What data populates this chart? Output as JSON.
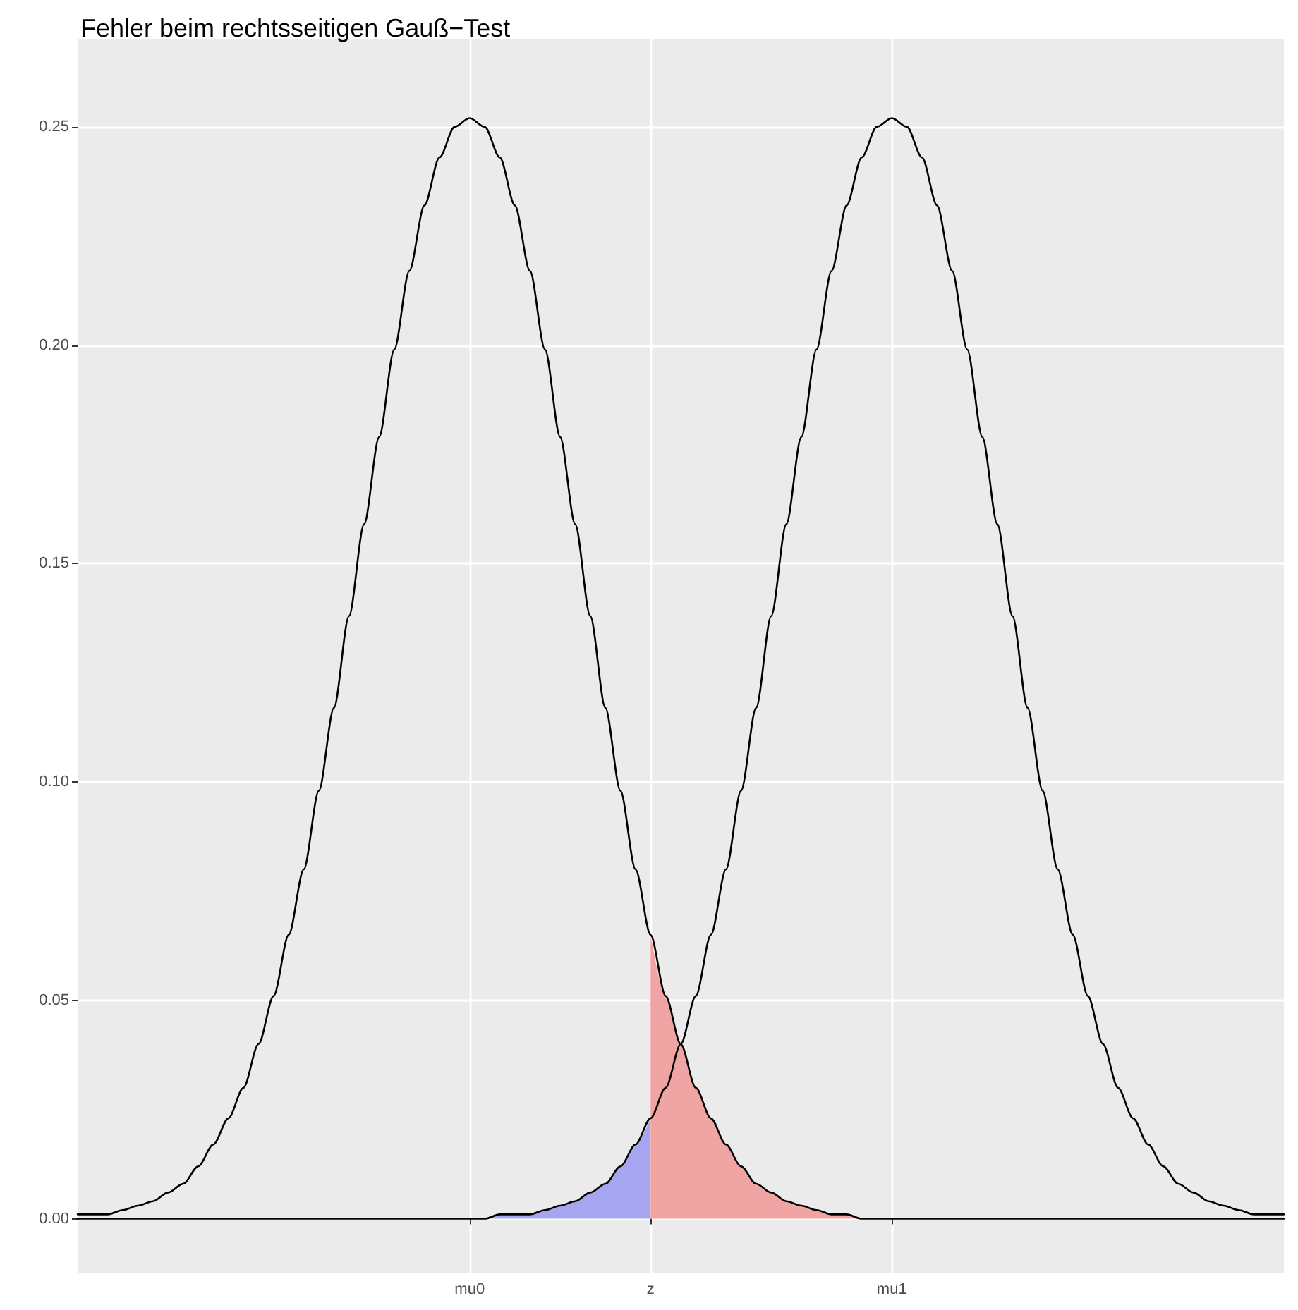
{
  "chart_data": {
    "type": "line",
    "title": "Fehler beim rechtsseitigen Gauß−Test",
    "categories": [
      null,
      null,
      null,
      null,
      null,
      null,
      null,
      null,
      null,
      null,
      null,
      null,
      null,
      null,
      null,
      null,
      null,
      null,
      null,
      null,
      null,
      null,
      null,
      null,
      null,
      null,
      "mu0",
      null,
      null,
      null,
      null,
      null,
      null,
      null,
      null,
      null,
      null,
      null,
      "z",
      null,
      null,
      null,
      null,
      null,
      null,
      null,
      null,
      null,
      null,
      null,
      null,
      null,
      null,
      null,
      "mu1",
      null,
      null,
      null,
      null,
      null,
      null,
      null,
      null,
      null,
      null,
      null,
      null,
      null,
      null,
      null,
      null,
      null,
      null,
      null,
      null,
      null,
      null,
      null,
      null,
      null,
      null
    ],
    "series": [
      {
        "type": "area",
        "color": "#a5a6ef",
        "values": [
          0,
          0,
          0,
          0,
          0,
          0,
          0,
          0,
          0,
          0,
          0,
          0,
          0,
          0,
          0,
          0,
          0,
          0,
          0,
          0,
          0,
          0,
          0,
          0,
          0,
          0,
          0,
          0,
          0.001,
          0.001,
          0.001,
          0.002,
          0.003,
          0.004,
          0.006,
          0.008,
          0.012,
          0.017,
          0.023,
          null,
          null,
          null,
          null,
          null,
          null,
          null,
          null,
          null,
          null,
          null,
          null,
          null,
          null,
          null,
          null,
          null,
          null,
          null,
          null,
          null,
          null,
          null,
          null,
          null,
          null,
          null,
          null,
          null,
          null,
          null,
          null,
          null,
          null,
          null,
          null,
          null,
          null,
          null,
          null,
          null,
          null
        ]
      },
      {
        "type": "area",
        "color": "#f0a5a4",
        "values": [
          null,
          null,
          null,
          null,
          null,
          null,
          null,
          null,
          null,
          null,
          null,
          null,
          null,
          null,
          null,
          null,
          null,
          null,
          null,
          null,
          null,
          null,
          null,
          null,
          null,
          null,
          null,
          null,
          null,
          null,
          null,
          null,
          null,
          null,
          null,
          null,
          null,
          null,
          0.065,
          0.051,
          0.04,
          0.03,
          0.023,
          0.017,
          0.012,
          0.008,
          0.006,
          0.004,
          0.003,
          0.002,
          0.001,
          0.001,
          0,
          0,
          0,
          0,
          0,
          0,
          0,
          0,
          0,
          0,
          0,
          0,
          0,
          0,
          0,
          0,
          0,
          0,
          0,
          0,
          0,
          0,
          0,
          0,
          0,
          0,
          0,
          0,
          0
        ]
      },
      {
        "color": "#000000",
        "values": [
          0.001,
          0.001,
          0.001,
          0.002,
          0.003,
          0.004,
          0.006,
          0.008,
          0.012,
          0.017,
          0.023,
          0.03,
          0.04,
          0.051,
          0.065,
          0.08,
          0.098,
          0.117,
          0.138,
          0.159,
          0.179,
          0.199,
          0.217,
          0.232,
          0.243,
          0.25,
          0.252,
          0.25,
          0.243,
          0.232,
          0.217,
          0.199,
          0.179,
          0.159,
          0.138,
          0.117,
          0.098,
          0.08,
          0.065,
          0.051,
          0.04,
          0.03,
          0.023,
          0.017,
          0.012,
          0.008,
          0.006,
          0.004,
          0.003,
          0.002,
          0.001,
          0.001,
          0,
          0,
          0,
          0,
          0,
          0,
          0,
          0,
          0,
          0,
          0,
          0,
          0,
          0,
          0,
          0,
          0,
          0,
          0,
          0,
          0,
          0,
          0,
          0,
          0,
          0,
          0,
          0,
          0
        ]
      },
      {
        "color": "#000000",
        "values": [
          0,
          0,
          0,
          0,
          0,
          0,
          0,
          0,
          0,
          0,
          0,
          0,
          0,
          0,
          0,
          0,
          0,
          0,
          0,
          0,
          0,
          0,
          0,
          0,
          0,
          0,
          0,
          0,
          0.001,
          0.001,
          0.001,
          0.002,
          0.003,
          0.004,
          0.006,
          0.008,
          0.012,
          0.017,
          0.023,
          0.03,
          0.04,
          0.051,
          0.065,
          0.08,
          0.098,
          0.117,
          0.138,
          0.159,
          0.179,
          0.199,
          0.217,
          0.232,
          0.243,
          0.25,
          0.252,
          0.25,
          0.243,
          0.232,
          0.217,
          0.199,
          0.179,
          0.159,
          0.138,
          0.117,
          0.098,
          0.08,
          0.065,
          0.051,
          0.04,
          0.03,
          0.023,
          0.017,
          0.012,
          0.008,
          0.006,
          0.004,
          0.003,
          0.002,
          0.001,
          0.001,
          0.001
        ]
      }
    ],
    "ylim": [
      -0.0125,
      0.27
    ],
    "yticks": [
      {
        "value": 0,
        "label": "0.00"
      },
      {
        "value": 0.05,
        "label": "0.05"
      },
      {
        "value": 0.1,
        "label": "0.10"
      },
      {
        "value": 0.15,
        "label": "0.15"
      },
      {
        "value": 0.2,
        "label": "0.20"
      },
      {
        "value": 0.25,
        "label": "0.25"
      }
    ],
    "grid": true,
    "marker": "none",
    "line_style": "solid"
  }
}
